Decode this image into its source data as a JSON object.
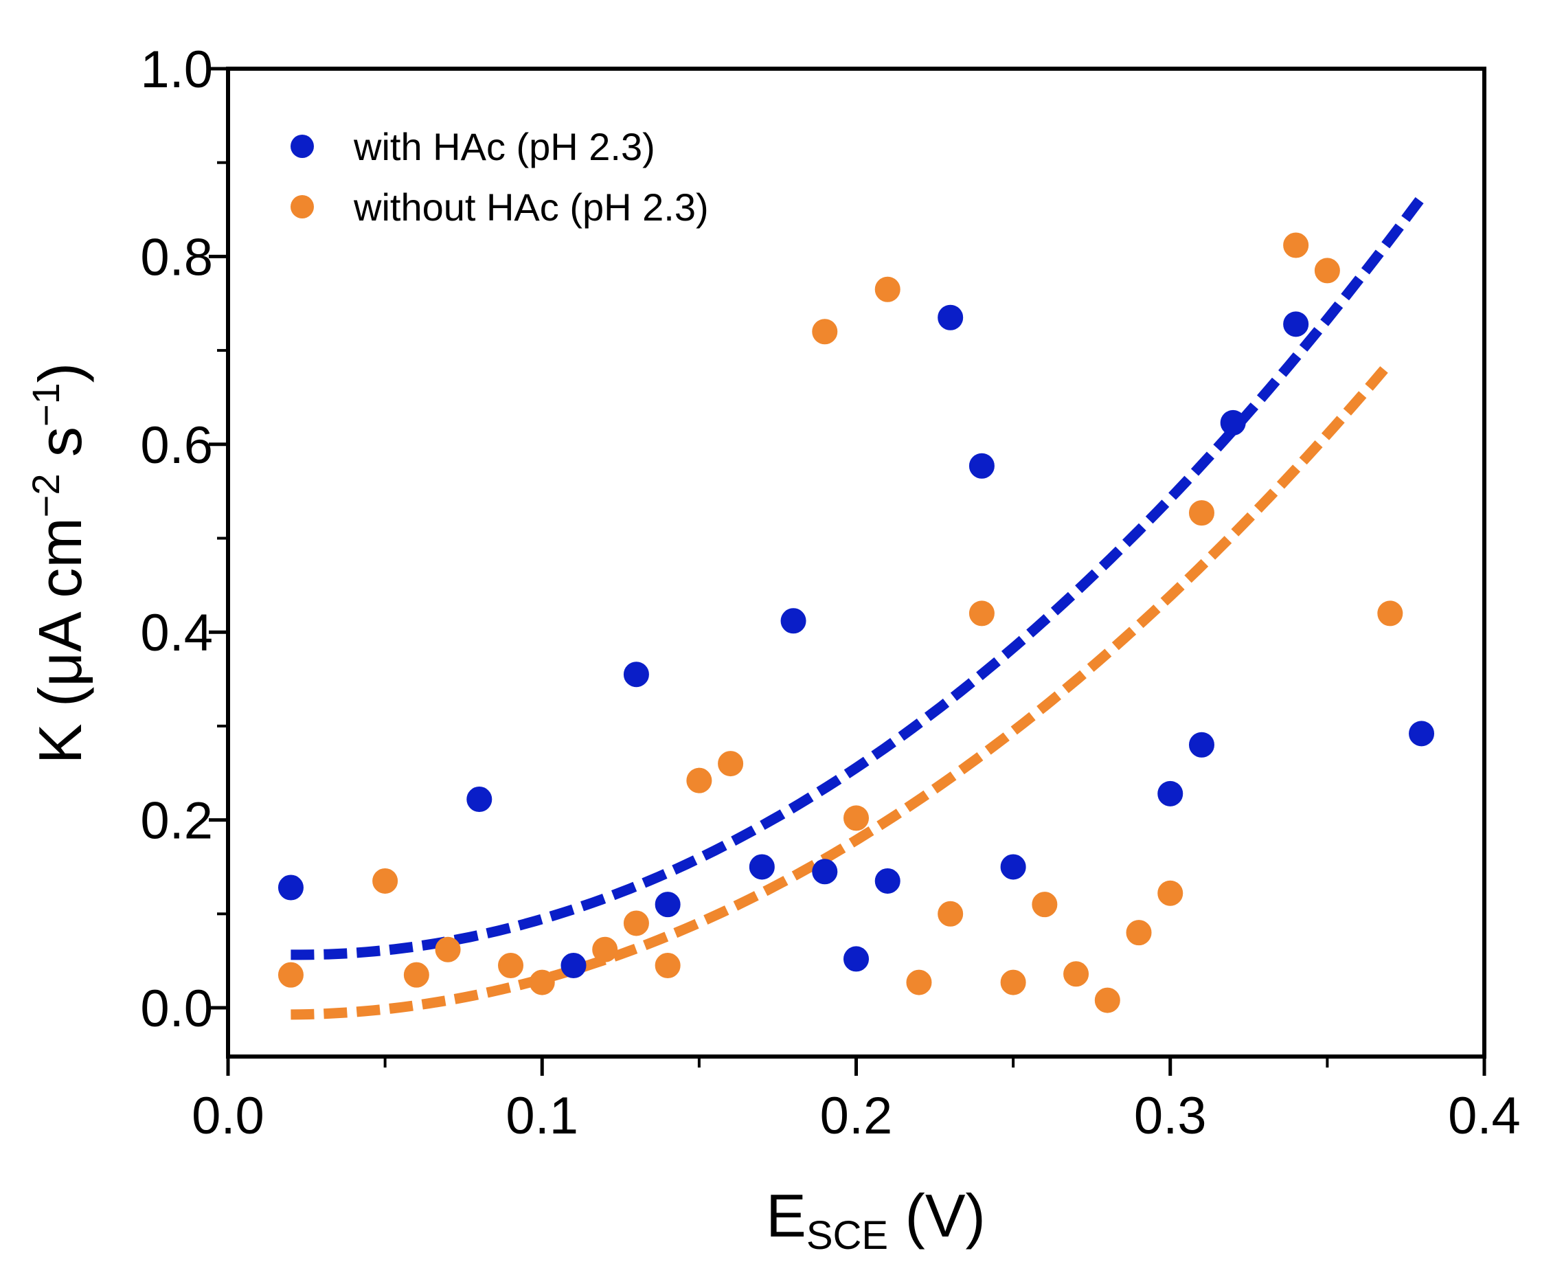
{
  "chart_data": {
    "type": "scatter",
    "title": "",
    "xlabel_main": "E",
    "xlabel_sub": "SCE",
    "xlabel_unit": " (V)",
    "ylabel_pre": "K (μA cm",
    "ylabel_exp1": "−2",
    "ylabel_mid": " s",
    "ylabel_exp2": "−1",
    "ylabel_post": ")",
    "xlim": [
      0.0,
      0.4
    ],
    "ylim": [
      -0.05,
      1.0
    ],
    "xticks": [
      0.0,
      0.1,
      0.2,
      0.3,
      0.4
    ],
    "xtick_labels": [
      "0.0",
      "0.1",
      "0.2",
      "0.3",
      "0.4"
    ],
    "yticks": [
      0.0,
      0.2,
      0.4,
      0.6,
      0.8,
      1.0
    ],
    "ytick_labels": [
      "0.0",
      "0.2",
      "0.4",
      "0.6",
      "0.8",
      "1.0"
    ],
    "legend_position": "top-left",
    "series": [
      {
        "name": "with HAc (pH 2.3)",
        "color": "#0a1ec8",
        "x": [
          0.02,
          0.08,
          0.11,
          0.13,
          0.14,
          0.17,
          0.18,
          0.19,
          0.2,
          0.21,
          0.23,
          0.24,
          0.25,
          0.3,
          0.31,
          0.32,
          0.34,
          0.38
        ],
        "y": [
          0.128,
          0.222,
          0.045,
          0.355,
          0.11,
          0.15,
          0.412,
          0.145,
          0.052,
          0.135,
          0.735,
          0.577,
          0.15,
          0.228,
          0.28,
          0.623,
          0.728,
          0.292
        ],
        "fit": {
          "x_start": 0.02,
          "x_end": 0.38,
          "coefficients": [
            0.0595,
            -0.28,
            6.3
          ]
        }
      },
      {
        "name": "without HAc (pH 2.3)",
        "color": "#f0872d",
        "x": [
          0.02,
          0.05,
          0.06,
          0.07,
          0.09,
          0.1,
          0.12,
          0.13,
          0.14,
          0.15,
          0.16,
          0.19,
          0.2,
          0.21,
          0.22,
          0.23,
          0.24,
          0.25,
          0.26,
          0.27,
          0.28,
          0.29,
          0.3,
          0.31,
          0.34,
          0.35,
          0.37
        ],
        "y": [
          0.035,
          0.135,
          0.035,
          0.062,
          0.045,
          0.027,
          0.062,
          0.09,
          0.045,
          0.242,
          0.26,
          0.72,
          0.202,
          0.765,
          0.027,
          0.1,
          0.42,
          0.027,
          0.11,
          0.036,
          0.008,
          0.08,
          0.122,
          0.527,
          0.812,
          0.785,
          0.42
        ],
        "fit": {
          "x_start": 0.02,
          "x_end": 0.37,
          "coefficients": [
            -0.0055,
            -0.2,
            5.6
          ]
        }
      }
    ]
  }
}
